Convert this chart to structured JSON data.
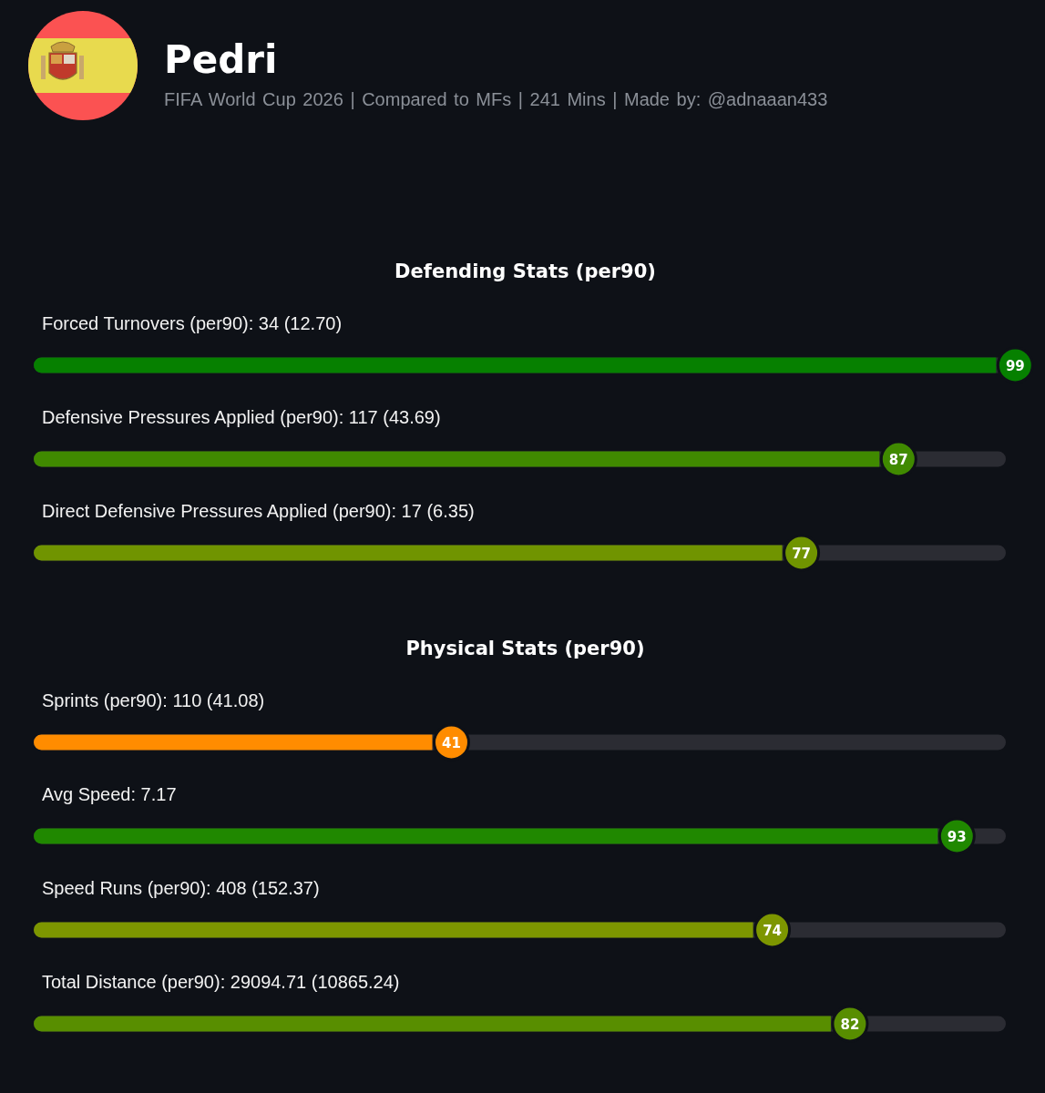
{
  "chart_data": [
    {
      "type": "other",
      "title": "Pedri",
      "subtitle": "FIFA World Cup 2026 | Compared to MFs | 241 Mins | Made by: @adnaaan433"
    },
    {
      "type": "bar",
      "orientation": "horizontal",
      "title": "Defending Stats (per90)",
      "categories": [
        "Forced Turnovers (per90): 34 (12.70)",
        "Defensive Pressures Applied (per90): 117 (43.69)",
        "Direct Defensive Pressures Applied (per90): 17 (6.35)"
      ],
      "values": [
        99,
        87,
        77
      ],
      "colors": [
        "#068000",
        "#408a00",
        "#709400"
      ],
      "xlim": [
        0,
        100
      ],
      "tick_labels": "y",
      "data_labels": true
    },
    {
      "type": "bar",
      "orientation": "horizontal",
      "title": "Physical Stats (per90)",
      "categories": [
        "Sprints (per90): 110 (41.08)",
        "Avg Speed: 7.17",
        "Speed Runs (per90): 408 (152.37)",
        "Total Distance (per90): 29094.71 (10865.24)"
      ],
      "values": [
        41,
        93,
        74,
        82
      ],
      "colors": [
        "#ff8c00",
        "#208800",
        "#7d9600",
        "#588e00"
      ],
      "xlim": [
        0,
        100
      ],
      "tick_labels": "y",
      "data_labels": true
    }
  ]
}
